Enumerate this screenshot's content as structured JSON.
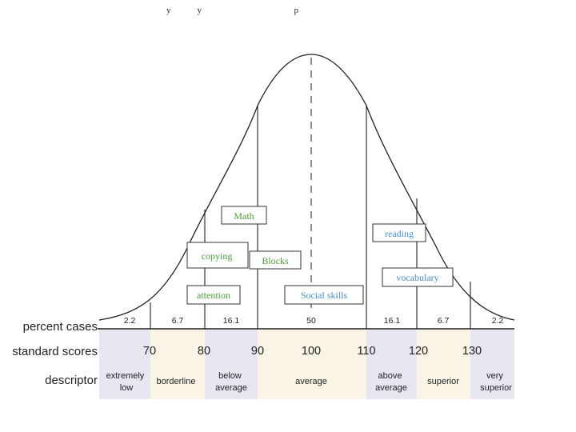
{
  "header": {
    "fragment_text": "y            y                                          p"
  },
  "row_labels": {
    "percent": "percent cases",
    "scores": "standard scores",
    "descriptor": "descriptor"
  },
  "percentages": [
    "2.2",
    "6.7",
    "16.1",
    "50",
    "16.1",
    "6.7",
    "2.2"
  ],
  "scores": [
    "70",
    "80",
    "90",
    "100",
    "110",
    "120",
    "130"
  ],
  "descriptors": [
    {
      "lines": [
        "extremely",
        "low"
      ]
    },
    {
      "lines": [
        "borderline"
      ]
    },
    {
      "lines": [
        "below",
        "average"
      ]
    },
    {
      "lines": [
        "average"
      ]
    },
    {
      "lines": [
        "above",
        "average"
      ]
    },
    {
      "lines": [
        "superior"
      ]
    },
    {
      "lines": [
        "very",
        "superior"
      ]
    }
  ],
  "skills": [
    {
      "label": "Math",
      "color": "#4e9a3c"
    },
    {
      "label": "copying",
      "color": "#4e9a3c"
    },
    {
      "label": "Blocks",
      "color": "#4e9a3c"
    },
    {
      "label": "attention",
      "color": "#4e9a3c"
    },
    {
      "label": "Social skills",
      "color": "#4a8ec4"
    },
    {
      "label": "reading",
      "color": "#4a8ec4"
    },
    {
      "label": "vocabulary",
      "color": "#4a8ec4"
    }
  ],
  "colors": {
    "band_lavender": "#e8e6f0",
    "band_cream": "#faf4e6",
    "curve": "#222222",
    "text": "#222222"
  }
}
